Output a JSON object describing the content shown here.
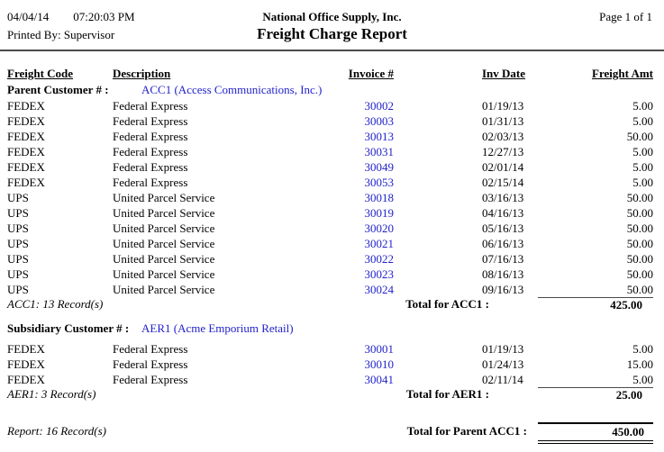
{
  "header": {
    "print_date": "04/04/14",
    "print_time": "07:20:03 PM",
    "printed_by": "Printed By: Supervisor",
    "company": "National Office Supply, Inc.",
    "report_title": "Freight Charge Report",
    "page_label": "Page 1 of 1"
  },
  "colors": {
    "link_blue": "#2222CC",
    "rule_gray": "#4a4a4a",
    "text": "#000000"
  },
  "table": {
    "columns": [
      "Freight Code",
      "Description",
      "Invoice #",
      "Inv Date",
      "Freight Amt"
    ],
    "groups": [
      {
        "group_label": "Parent Customer # :",
        "customer": "ACC1 (Access Communications, Inc.)",
        "rows": [
          {
            "code": "FEDEX",
            "description": "Federal Express",
            "invoice": "30002",
            "date": "01/19/13",
            "amount": "5.00"
          },
          {
            "code": "FEDEX",
            "description": "Federal Express",
            "invoice": "30003",
            "date": "01/31/13",
            "amount": "5.00"
          },
          {
            "code": "FEDEX",
            "description": "Federal Express",
            "invoice": "30013",
            "date": "02/03/13",
            "amount": "50.00"
          },
          {
            "code": "FEDEX",
            "description": "Federal Express",
            "invoice": "30031",
            "date": "12/27/13",
            "amount": "5.00"
          },
          {
            "code": "FEDEX",
            "description": "Federal Express",
            "invoice": "30049",
            "date": "02/01/14",
            "amount": "5.00"
          },
          {
            "code": "FEDEX",
            "description": "Federal Express",
            "invoice": "30053",
            "date": "02/15/14",
            "amount": "5.00"
          },
          {
            "code": "UPS",
            "description": "United Parcel Service",
            "invoice": "30018",
            "date": "03/16/13",
            "amount": "50.00"
          },
          {
            "code": "UPS",
            "description": "United Parcel Service",
            "invoice": "30019",
            "date": "04/16/13",
            "amount": "50.00"
          },
          {
            "code": "UPS",
            "description": "United Parcel Service",
            "invoice": "30020",
            "date": "05/16/13",
            "amount": "50.00"
          },
          {
            "code": "UPS",
            "description": "United Parcel Service",
            "invoice": "30021",
            "date": "06/16/13",
            "amount": "50.00"
          },
          {
            "code": "UPS",
            "description": "United Parcel Service",
            "invoice": "30022",
            "date": "07/16/13",
            "amount": "50.00"
          },
          {
            "code": "UPS",
            "description": "United Parcel Service",
            "invoice": "30023",
            "date": "08/16/13",
            "amount": "50.00"
          },
          {
            "code": "UPS",
            "description": "United Parcel Service",
            "invoice": "30024",
            "date": "09/16/13",
            "amount": "50.00"
          }
        ],
        "record_count": "ACC1: 13 Record(s)",
        "total_label": "Total for ACC1 :",
        "total_amount": "425.00"
      },
      {
        "group_label": "Subsidiary Customer # :",
        "customer": "AER1 (Acme Emporium Retail)",
        "rows": [
          {
            "code": "FEDEX",
            "description": "Federal Express",
            "invoice": "30001",
            "date": "01/19/13",
            "amount": "5.00"
          },
          {
            "code": "FEDEX",
            "description": "Federal Express",
            "invoice": "30010",
            "date": "01/24/13",
            "amount": "15.00"
          },
          {
            "code": "FEDEX",
            "description": "Federal Express",
            "invoice": "30041",
            "date": "02/11/14",
            "amount": "5.00"
          }
        ],
        "record_count": "AER1: 3 Record(s)",
        "total_label": "Total for AER1 :",
        "total_amount": "25.00"
      }
    ],
    "report_summary": {
      "record_count": "Report: 16 Record(s)",
      "total_label": "Total for Parent ACC1 :",
      "total_amount": "450.00"
    }
  }
}
